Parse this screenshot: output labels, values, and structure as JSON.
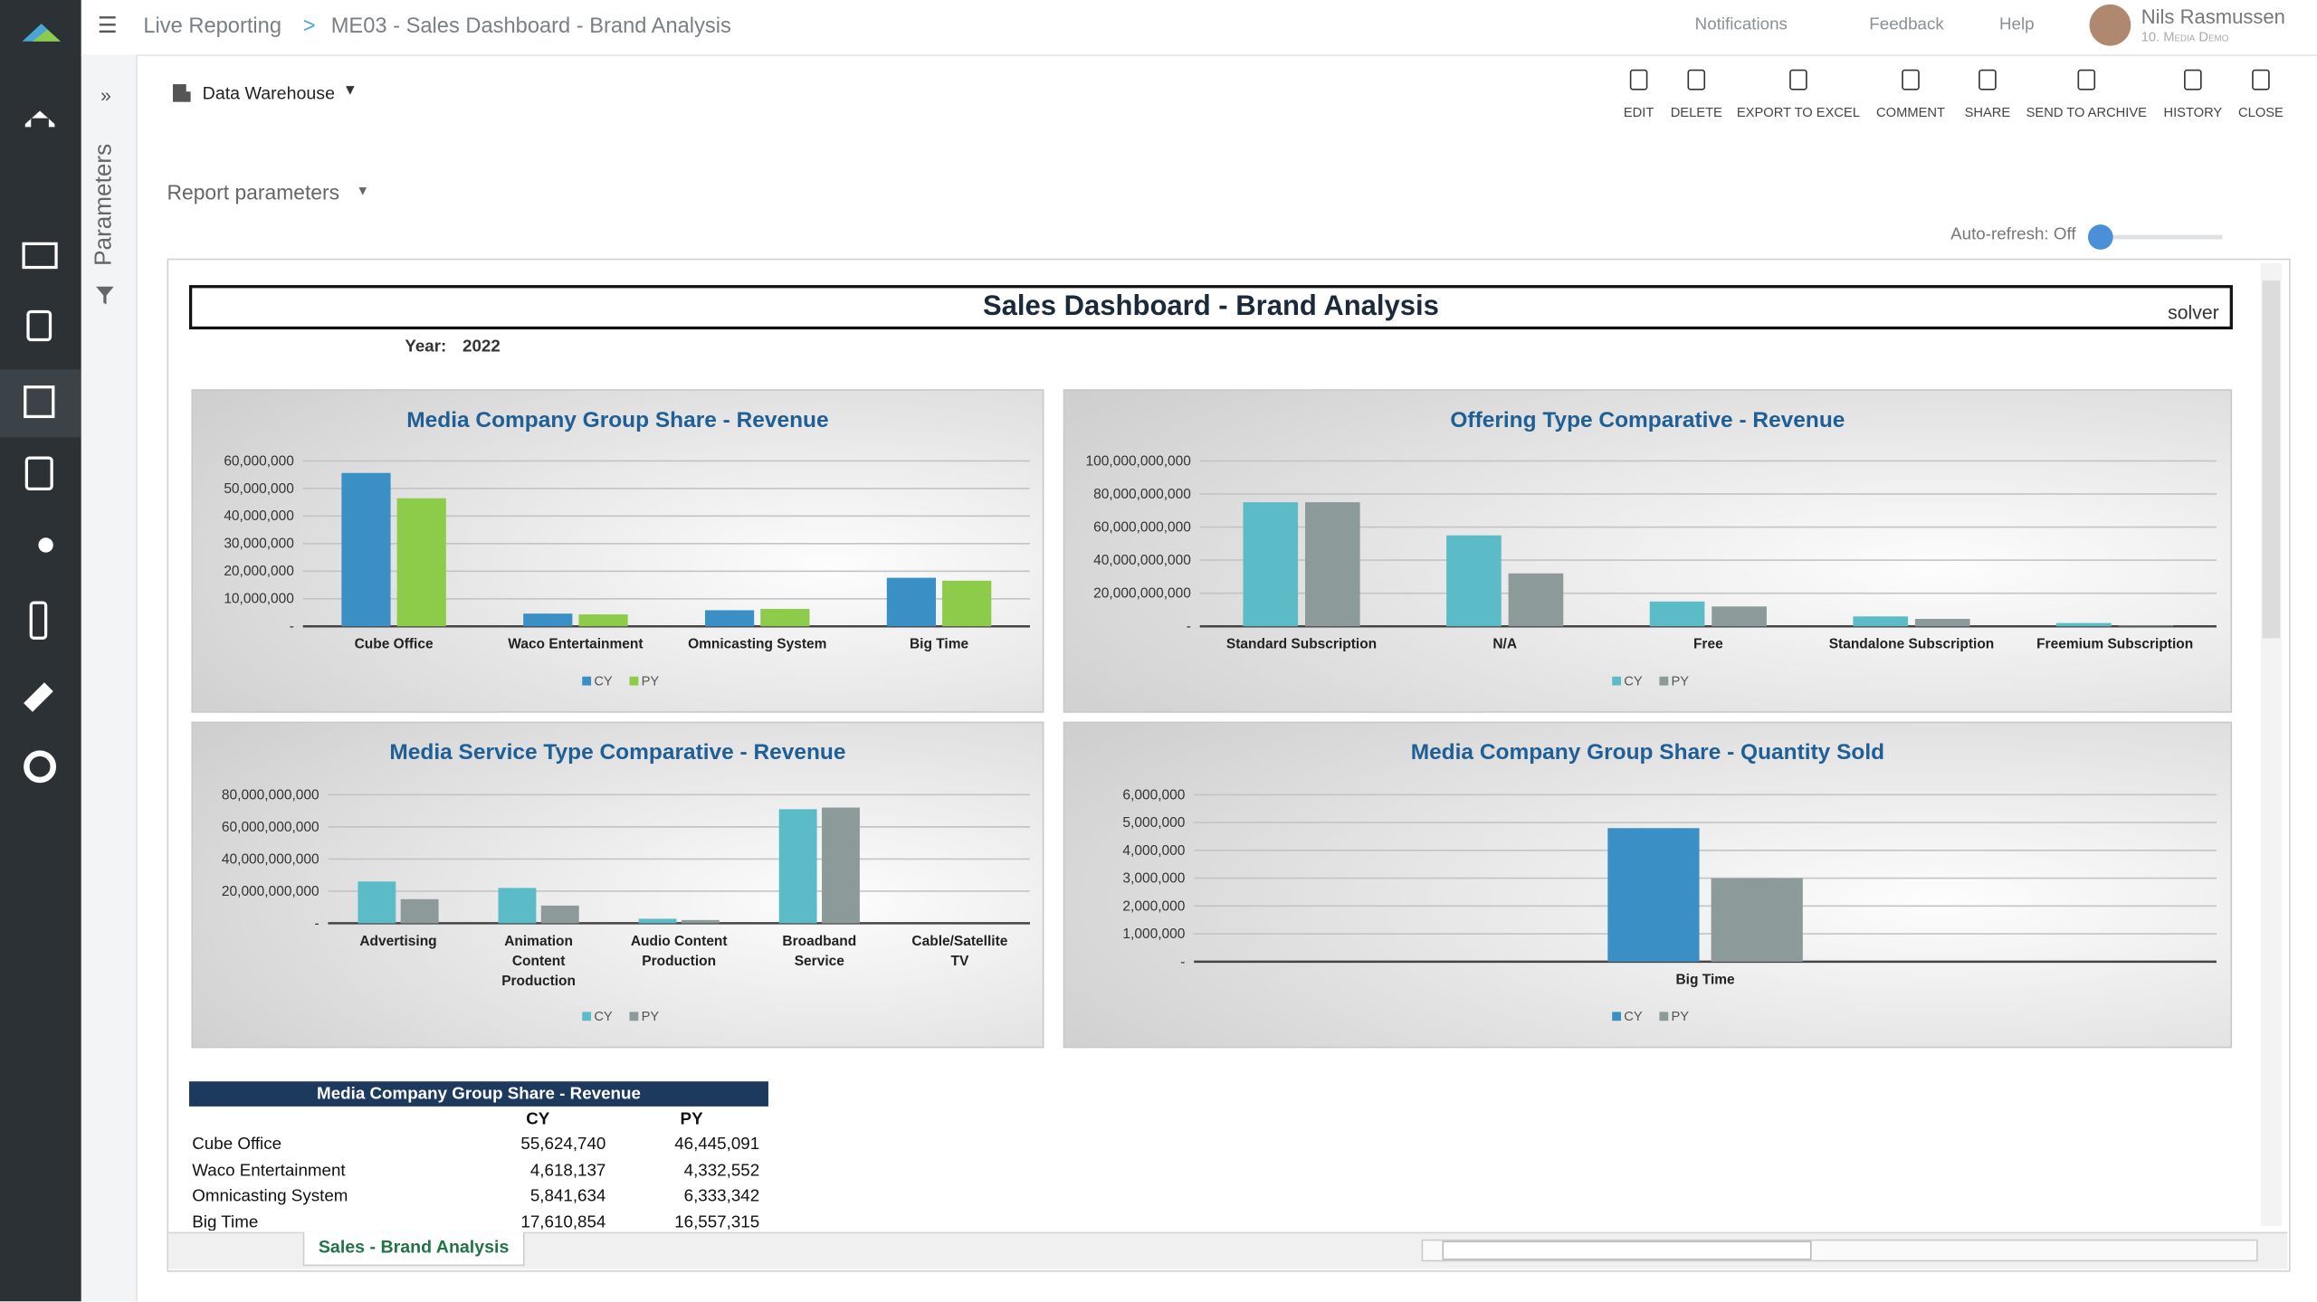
{
  "header": {
    "breadcrumb": [
      "Live Reporting",
      "ME03 - Sales Dashboard - Brand Analysis"
    ],
    "breadcrumb_separator": ">",
    "notifications": "Notifications",
    "feedback": "Feedback",
    "help": "Help",
    "user_name": "Nils Rasmussen",
    "user_org": "10. Media Demo"
  },
  "sidebar": {
    "expand": "»",
    "parameters": "Parameters"
  },
  "toolbar": {
    "data_source": "Data Warehouse",
    "actions": [
      "EDIT",
      "DELETE",
      "EXPORT TO EXCEL",
      "COMMENT",
      "SHARE",
      "SEND TO ARCHIVE",
      "HISTORY",
      "CLOSE"
    ]
  },
  "report_parameters": "Report parameters",
  "auto_refresh": "Auto-refresh: Off",
  "report": {
    "title": "Sales Dashboard - Brand Analysis",
    "logo": "solver",
    "year_label": "Year:",
    "year": "2022"
  },
  "chart_data": [
    {
      "type": "bar",
      "title": "Media Company Group Share - Revenue",
      "categories": [
        "Cube Office",
        "Waco Entertainment",
        "Omnicasting System",
        "Big Time"
      ],
      "series": [
        {
          "name": "CY",
          "color": "#3a8fc4",
          "values": [
            55624740,
            4618137,
            5841634,
            17610854
          ]
        },
        {
          "name": "PY",
          "color": "#8dcb4a",
          "values": [
            46445091,
            4332552,
            6333342,
            16557315
          ]
        }
      ],
      "ylim": [
        0,
        60000000
      ],
      "yticks": [
        {
          "value": 0,
          "label": "-"
        },
        {
          "value": 10000000,
          "label": "10,000,000"
        },
        {
          "value": 20000000,
          "label": "20,000,000"
        },
        {
          "value": 30000000,
          "label": "30,000,000"
        },
        {
          "value": 40000000,
          "label": "40,000,000"
        },
        {
          "value": 50000000,
          "label": "50,000,000"
        },
        {
          "value": 60000000,
          "label": "60,000,000"
        }
      ],
      "grid": true,
      "legend": "bottom"
    },
    {
      "type": "bar",
      "title": "Offering Type Comparative - Revenue",
      "categories": [
        "Standard Subscription",
        "N/A",
        "Free",
        "Standalone Subscription",
        "Freemium Subscription"
      ],
      "series": [
        {
          "name": "CY",
          "color": "#5bbcc8",
          "values": [
            75000000000,
            55000000000,
            15000000000,
            6000000000,
            2000000000
          ]
        },
        {
          "name": "PY",
          "color": "#8c9a9a",
          "values": [
            75000000000,
            32000000000,
            12000000000,
            4500000000,
            500000000
          ]
        }
      ],
      "ylim": [
        0,
        100000000000
      ],
      "yticks": [
        {
          "value": 0,
          "label": "-"
        },
        {
          "value": 20000000000,
          "label": "20,000,000,000"
        },
        {
          "value": 40000000000,
          "label": "40,000,000,000"
        },
        {
          "value": 60000000000,
          "label": "60,000,000,000"
        },
        {
          "value": 80000000000,
          "label": "80,000,000,000"
        },
        {
          "value": 100000000000,
          "label": "100,000,000,000"
        }
      ],
      "grid": true,
      "legend": "bottom"
    },
    {
      "type": "bar",
      "title": "Media Service Type Comparative - Revenue",
      "categories": [
        "Advertising",
        "Animation Content Production",
        "Audio Content Production",
        "Broadband Service",
        "Cable/Satellite TV"
      ],
      "series": [
        {
          "name": "CY",
          "color": "#5bbcc8",
          "values": [
            26000000000,
            22000000000,
            2800000000,
            71000000000,
            0
          ]
        },
        {
          "name": "PY",
          "color": "#8c9a9a",
          "values": [
            15000000000,
            11000000000,
            2000000000,
            72000000000,
            0
          ]
        }
      ],
      "ylim": [
        0,
        80000000000
      ],
      "yticks": [
        {
          "value": 0,
          "label": "-"
        },
        {
          "value": 20000000000,
          "label": "20,000,000,000"
        },
        {
          "value": 40000000000,
          "label": "40,000,000,000"
        },
        {
          "value": 60000000000,
          "label": "60,000,000,000"
        },
        {
          "value": 80000000000,
          "label": "80,000,000,000"
        }
      ],
      "grid": true,
      "legend": "bottom"
    },
    {
      "type": "bar",
      "title": "Media Company Group Share - Quantity Sold",
      "categories": [
        "Big Time"
      ],
      "series": [
        {
          "name": "CY",
          "color": "#3a8fc4",
          "values": [
            4800000
          ]
        },
        {
          "name": "PY",
          "color": "#8c9a9a",
          "values": [
            3000000
          ]
        }
      ],
      "ylim": [
        0,
        6000000
      ],
      "yticks": [
        {
          "value": 0,
          "label": "-"
        },
        {
          "value": 1000000,
          "label": "1,000,000"
        },
        {
          "value": 2000000,
          "label": "2,000,000"
        },
        {
          "value": 3000000,
          "label": "3,000,000"
        },
        {
          "value": 4000000,
          "label": "4,000,000"
        },
        {
          "value": 5000000,
          "label": "5,000,000"
        },
        {
          "value": 6000000,
          "label": "6,000,000"
        }
      ],
      "grid": true,
      "legend": "bottom"
    }
  ],
  "table": {
    "title": "Media Company Group Share - Revenue",
    "columns": [
      "CY",
      "PY"
    ],
    "rows": [
      [
        "Cube Office",
        "55,624,740",
        "46,445,091"
      ],
      [
        "Waco Entertainment",
        "4,618,137",
        "4,332,552"
      ],
      [
        "Omnicasting System",
        "5,841,634",
        "6,333,342"
      ],
      [
        "Big Time",
        "17,610,854",
        "16,557,315"
      ]
    ]
  },
  "sheet_tab": "Sales - Brand Analysis"
}
